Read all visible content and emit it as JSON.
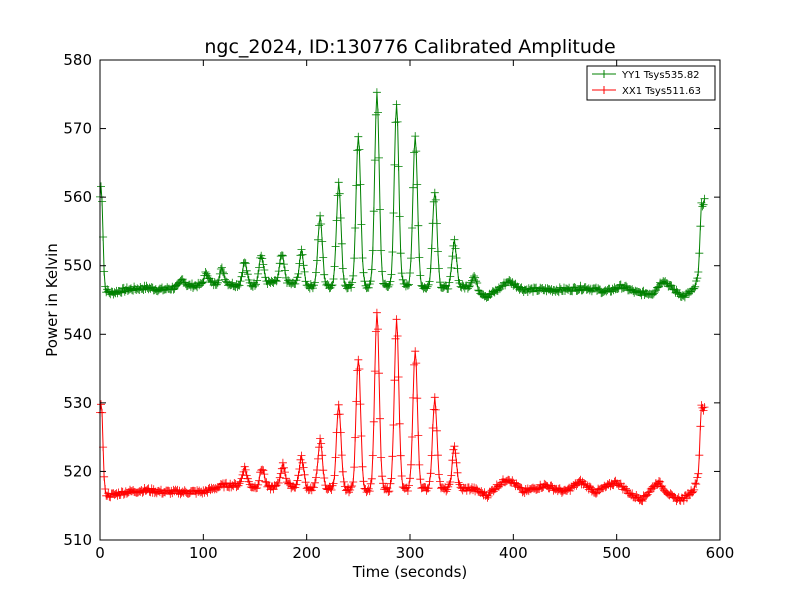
{
  "chart_data": {
    "type": "line",
    "title": "ngc_2024, ID:130776 Calibrated Amplitude",
    "xlabel": "Time (seconds)",
    "ylabel": "Power in Kelvin",
    "xlim": [
      0,
      600
    ],
    "ylim": [
      510,
      580
    ],
    "xticks": [
      0,
      100,
      200,
      300,
      400,
      500,
      600
    ],
    "yticks": [
      510,
      520,
      530,
      540,
      550,
      560,
      570,
      580
    ],
    "xtick_labels": [
      "0",
      "100",
      "200",
      "300",
      "400",
      "500",
      "600"
    ],
    "ytick_labels": [
      "510",
      "520",
      "530",
      "540",
      "550",
      "560",
      "570",
      "580"
    ],
    "grid": false,
    "legend_position": "top-right",
    "marker": "plus",
    "series": [
      {
        "name": "YY1 Tsys535.82",
        "color": "#008000",
        "baseline": [
          [
            0,
            547
          ],
          [
            10,
            546
          ],
          [
            25,
            546.5
          ],
          [
            45,
            546.8
          ],
          [
            60,
            546.5
          ],
          [
            80,
            547
          ],
          [
            100,
            547.2
          ],
          [
            120,
            547.5
          ],
          [
            140,
            547
          ],
          [
            160,
            547.5
          ],
          [
            180,
            547.5
          ],
          [
            200,
            547
          ],
          [
            220,
            547
          ],
          [
            240,
            547
          ],
          [
            260,
            547
          ],
          [
            280,
            547
          ],
          [
            300,
            547
          ],
          [
            320,
            546.8
          ],
          [
            340,
            546.8
          ],
          [
            360,
            547
          ],
          [
            375,
            545.5
          ],
          [
            385,
            546.5
          ],
          [
            395,
            547.8
          ],
          [
            410,
            546.5
          ],
          [
            430,
            546.5
          ],
          [
            450,
            546.5
          ],
          [
            470,
            546.8
          ],
          [
            490,
            546.2
          ],
          [
            505,
            547
          ],
          [
            520,
            546
          ],
          [
            535,
            546
          ],
          [
            545,
            548
          ],
          [
            555,
            546.5
          ],
          [
            565,
            545.5
          ],
          [
            575,
            546.5
          ],
          [
            580,
            549
          ],
          [
            585,
            549
          ]
        ],
        "spikes": [
          {
            "x": 0,
            "value": 557.5
          },
          {
            "x": 2,
            "value": 557
          },
          {
            "x": 80,
            "value": 548
          },
          {
            "x": 103,
            "value": 549
          },
          {
            "x": 118,
            "value": 549.5
          },
          {
            "x": 140,
            "value": 550.5
          },
          {
            "x": 156,
            "value": 551.5
          },
          {
            "x": 176,
            "value": 551.5
          },
          {
            "x": 195,
            "value": 552
          },
          {
            "x": 213,
            "value": 557
          },
          {
            "x": 231,
            "value": 562
          },
          {
            "x": 250,
            "value": 569
          },
          {
            "x": 268,
            "value": 575
          },
          {
            "x": 287,
            "value": 573.5
          },
          {
            "x": 305,
            "value": 569
          },
          {
            "x": 324,
            "value": 561
          },
          {
            "x": 343,
            "value": 553.5
          },
          {
            "x": 362,
            "value": 548.5
          },
          {
            "x": 582,
            "value": 559
          },
          {
            "x": 585,
            "value": 559
          }
        ]
      },
      {
        "name": "XX1 Tsys511.63",
        "color": "#ff0000",
        "baseline": [
          [
            0,
            517
          ],
          [
            10,
            516.5
          ],
          [
            25,
            517
          ],
          [
            45,
            517.3
          ],
          [
            60,
            517
          ],
          [
            80,
            517
          ],
          [
            100,
            517
          ],
          [
            120,
            518
          ],
          [
            140,
            518
          ],
          [
            160,
            517.5
          ],
          [
            180,
            518
          ],
          [
            200,
            517.5
          ],
          [
            220,
            517.5
          ],
          [
            240,
            517.3
          ],
          [
            260,
            517.3
          ],
          [
            280,
            517.3
          ],
          [
            300,
            517.3
          ],
          [
            320,
            517.5
          ],
          [
            340,
            517.3
          ],
          [
            360,
            517.5
          ],
          [
            375,
            516.5
          ],
          [
            385,
            518
          ],
          [
            395,
            519
          ],
          [
            410,
            517
          ],
          [
            430,
            518
          ],
          [
            450,
            517
          ],
          [
            465,
            518.5
          ],
          [
            480,
            517
          ],
          [
            500,
            518.5
          ],
          [
            515,
            516.5
          ],
          [
            525,
            516
          ],
          [
            540,
            518.5
          ],
          [
            555,
            516
          ],
          [
            565,
            516
          ],
          [
            575,
            517.5
          ],
          [
            580,
            520
          ],
          [
            585,
            520
          ]
        ],
        "spikes": [
          {
            "x": 0,
            "value": 526.5
          },
          {
            "x": 2,
            "value": 526
          },
          {
            "x": 140,
            "value": 520.5
          },
          {
            "x": 157,
            "value": 520.5
          },
          {
            "x": 177,
            "value": 521
          },
          {
            "x": 195,
            "value": 522
          },
          {
            "x": 213,
            "value": 524.5
          },
          {
            "x": 231,
            "value": 529.5
          },
          {
            "x": 250,
            "value": 536.5
          },
          {
            "x": 268,
            "value": 543
          },
          {
            "x": 287,
            "value": 542
          },
          {
            "x": 305,
            "value": 537.5
          },
          {
            "x": 324,
            "value": 530.5
          },
          {
            "x": 343,
            "value": 523.5
          },
          {
            "x": 582,
            "value": 529.5
          },
          {
            "x": 585,
            "value": 529
          }
        ]
      }
    ]
  }
}
